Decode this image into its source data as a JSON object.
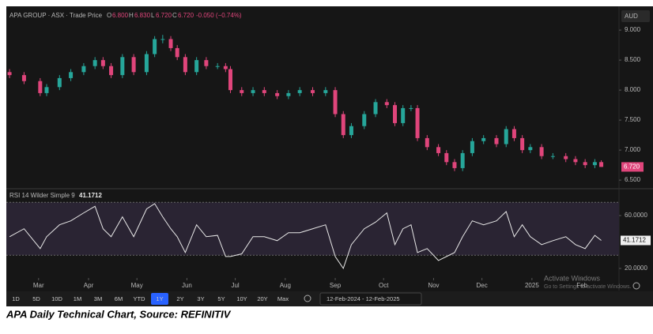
{
  "header": {
    "instrument": "APA GROUP · ASX · Trade Price",
    "o_label": "O",
    "open": "6.800",
    "h_label": "H",
    "high": "6.830",
    "l_label": "L",
    "low": "6.720",
    "c_label": "C",
    "close": "6.720",
    "change": "-0.050 (−0.74%)",
    "currency": "AUD"
  },
  "chart_data": [
    {
      "type": "candlestick",
      "up_color": "#26a69a",
      "down_color": "#e0457b",
      "price_tag": "6.720",
      "x": [
        0,
        9,
        19,
        23,
        31,
        38,
        46,
        53,
        58,
        63,
        70,
        77,
        85,
        90,
        95,
        100,
        104,
        109,
        116,
        122,
        129,
        134,
        137,
        144,
        151,
        158,
        166,
        173,
        180,
        188,
        196,
        202,
        207,
        212,
        220,
        227,
        234,
        239,
        244,
        249,
        253,
        259,
        266,
        271,
        276,
        281,
        287,
        294,
        302,
        308,
        313,
        318,
        323,
        330,
        337,
        345,
        351,
        357,
        363,
        367
      ],
      "open": [
        8.3,
        8.25,
        8.15,
        7.95,
        8.05,
        8.2,
        8.3,
        8.4,
        8.5,
        8.4,
        8.25,
        8.55,
        8.3,
        8.6,
        8.85,
        8.85,
        8.7,
        8.55,
        8.3,
        8.5,
        8.4,
        8.4,
        8.35,
        8.0,
        7.95,
        8.0,
        7.95,
        7.9,
        7.95,
        8.0,
        7.95,
        8.0,
        7.6,
        7.25,
        7.4,
        7.6,
        7.8,
        7.75,
        7.45,
        7.7,
        7.7,
        7.2,
        7.05,
        6.95,
        6.8,
        6.7,
        6.95,
        7.15,
        7.2,
        7.1,
        7.35,
        7.2,
        7.0,
        7.05,
        6.9,
        6.9,
        6.85,
        6.8,
        6.75,
        6.8
      ],
      "high": [
        8.35,
        8.3,
        8.2,
        8.1,
        8.25,
        8.35,
        8.45,
        8.55,
        8.55,
        8.45,
        8.6,
        8.6,
        8.65,
        8.9,
        8.92,
        8.9,
        8.75,
        8.6,
        8.55,
        8.55,
        8.45,
        8.45,
        8.4,
        8.05,
        8.05,
        8.05,
        8.0,
        8.0,
        8.05,
        8.05,
        8.05,
        8.05,
        7.65,
        7.45,
        7.65,
        7.85,
        7.85,
        7.8,
        7.75,
        7.75,
        7.75,
        7.25,
        7.1,
        7.0,
        6.85,
        7.0,
        7.2,
        7.25,
        7.25,
        7.4,
        7.4,
        7.25,
        7.1,
        7.1,
        6.95,
        6.95,
        6.9,
        6.85,
        6.85,
        6.83
      ],
      "low": [
        8.2,
        8.1,
        7.9,
        7.9,
        8.0,
        8.15,
        8.25,
        8.35,
        8.35,
        8.2,
        8.2,
        8.25,
        8.25,
        8.55,
        8.78,
        8.65,
        8.5,
        8.25,
        8.25,
        8.35,
        8.35,
        8.3,
        7.95,
        7.9,
        7.9,
        7.9,
        7.85,
        7.85,
        7.9,
        7.9,
        7.9,
        7.55,
        7.2,
        7.2,
        7.35,
        7.55,
        7.7,
        7.4,
        7.4,
        7.65,
        7.15,
        7.0,
        6.9,
        6.75,
        6.65,
        6.65,
        6.9,
        7.1,
        7.05,
        7.05,
        7.15,
        6.95,
        6.95,
        6.85,
        6.85,
        6.8,
        6.75,
        6.7,
        6.7,
        6.72
      ],
      "close": [
        8.25,
        8.15,
        7.95,
        8.05,
        8.2,
        8.3,
        8.4,
        8.5,
        8.4,
        8.25,
        8.55,
        8.3,
        8.6,
        8.85,
        8.85,
        8.7,
        8.55,
        8.3,
        8.5,
        8.4,
        8.4,
        8.35,
        8.0,
        7.95,
        8.0,
        7.95,
        7.9,
        7.95,
        8.0,
        7.95,
        8.0,
        7.6,
        7.25,
        7.4,
        7.6,
        7.8,
        7.75,
        7.45,
        7.7,
        7.7,
        7.2,
        7.05,
        6.95,
        6.8,
        6.7,
        6.95,
        7.15,
        7.2,
        7.1,
        7.35,
        7.2,
        7.0,
        7.05,
        6.9,
        6.9,
        6.85,
        6.8,
        6.75,
        6.8,
        6.72
      ],
      "xlim": [
        -2,
        378
      ],
      "xticks": [
        {
          "value": 18,
          "label": "Mar"
        },
        {
          "value": 49,
          "label": "Apr"
        },
        {
          "value": 79,
          "label": "May"
        },
        {
          "value": 110,
          "label": "Jun"
        },
        {
          "value": 140,
          "label": "Jul"
        },
        {
          "value": 171,
          "label": "Aug"
        },
        {
          "value": 202,
          "label": "Sep"
        },
        {
          "value": 232,
          "label": "Oct"
        },
        {
          "value": 263,
          "label": "Nov"
        },
        {
          "value": 293,
          "label": "Dec"
        },
        {
          "value": 324,
          "label": "2025"
        },
        {
          "value": 355,
          "label": "Feb"
        }
      ],
      "ylim": [
        6.37,
        9.37
      ],
      "yticks": [
        {
          "value": 6.5,
          "label": "6.500"
        },
        {
          "value": 7,
          "label": "7.000"
        },
        {
          "value": 7.5,
          "label": "7.500"
        },
        {
          "value": 8,
          "label": "8.000"
        },
        {
          "value": 8.5,
          "label": "8.500"
        },
        {
          "value": 9,
          "label": "9.000"
        }
      ]
    },
    {
      "type": "line",
      "title": "RSI 14 Wilder Simple 9",
      "value_label": "41.1712",
      "color": "#e8e8e8",
      "band_color": "#2a2433",
      "bands": [
        30,
        70
      ],
      "x": [
        0,
        9,
        19,
        23,
        31,
        38,
        46,
        53,
        58,
        63,
        70,
        77,
        85,
        90,
        95,
        100,
        104,
        109,
        116,
        122,
        129,
        134,
        137,
        144,
        151,
        158,
        166,
        173,
        180,
        188,
        196,
        202,
        207,
        212,
        220,
        227,
        234,
        239,
        244,
        249,
        253,
        259,
        266,
        271,
        276,
        281,
        287,
        294,
        302,
        308,
        313,
        318,
        323,
        330,
        337,
        345,
        351,
        357,
        363,
        367
      ],
      "values": [
        44,
        50,
        35,
        44,
        53,
        56,
        62,
        67,
        50,
        44,
        59,
        44,
        65,
        69,
        59,
        50,
        44,
        32,
        53,
        44,
        45,
        29,
        29,
        31,
        44,
        44,
        41,
        47,
        47,
        50,
        53,
        29,
        20,
        38,
        50,
        55,
        62,
        38,
        50,
        53,
        32,
        35,
        26,
        29,
        32,
        44,
        56,
        53,
        56,
        63,
        44,
        53,
        44,
        38,
        41,
        44,
        38,
        35,
        45,
        41.1712
      ],
      "xlim": [
        -2,
        378
      ],
      "ylim": [
        12.8,
        79.7
      ],
      "yticks": [
        {
          "value": 20,
          "label": "20.0000"
        },
        {
          "value": 60,
          "label": "60.0000"
        }
      ]
    }
  ],
  "toolbar": {
    "ranges": [
      "1D",
      "5D",
      "10D",
      "1M",
      "3M",
      "6M",
      "YTD",
      "1Y",
      "2Y",
      "3Y",
      "5Y",
      "10Y",
      "20Y",
      "Max"
    ],
    "active": "1Y",
    "date_range": "12-Feb-2024 - 12-Feb-2025"
  },
  "watermark": {
    "line1": "Activate Windows",
    "line2": "Go to Settings to activate Windows."
  },
  "caption": "APA Daily Technical Chart, Source: REFINITIV"
}
